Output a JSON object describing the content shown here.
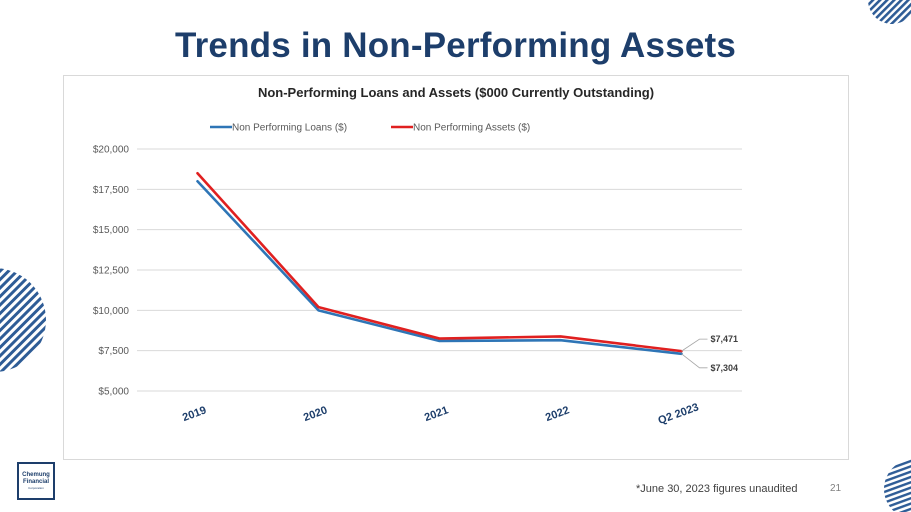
{
  "slide": {
    "title": "Trends in Non-Performing Assets",
    "footnote": "*June 30, 2023 figures unaudited",
    "page_number": "21",
    "logo_text": "Chemung\nFinancial",
    "logo_subtext": "Corporation"
  },
  "colors": {
    "title": "#1d3e6b",
    "loans_line": "#2e75b6",
    "assets_line": "#e02020",
    "tick_label": "#1d3e6b",
    "grid": "#d9d9d9",
    "deco": "#2e5c96"
  },
  "chart_data": {
    "type": "line",
    "title": "Non-Performing Loans and Assets ($000 Currently Outstanding)",
    "categories": [
      "2019",
      "2020",
      "2021",
      "2022",
      "Q2 2023"
    ],
    "series": [
      {
        "name": "Non Performing Loans ($)",
        "values": [
          18000,
          10000,
          8100,
          8150,
          7304
        ]
      },
      {
        "name": "Non Performing Assets ($)",
        "values": [
          18500,
          10200,
          8250,
          8380,
          7471
        ]
      }
    ],
    "ylim": [
      5000,
      20000
    ],
    "yticks": [
      5000,
      7500,
      10000,
      12500,
      15000,
      17500,
      20000
    ],
    "ytick_labels": [
      "$5,000",
      "$7,500",
      "$10,000",
      "$12,500",
      "$15,000",
      "$17,500",
      "$20,000"
    ],
    "data_labels": [
      {
        "series": 1,
        "index": 4,
        "text": "$7,471"
      },
      {
        "series": 0,
        "index": 4,
        "text": "$7,304"
      }
    ],
    "legend_position": "top",
    "grid": true,
    "xlabel": "",
    "ylabel": ""
  }
}
